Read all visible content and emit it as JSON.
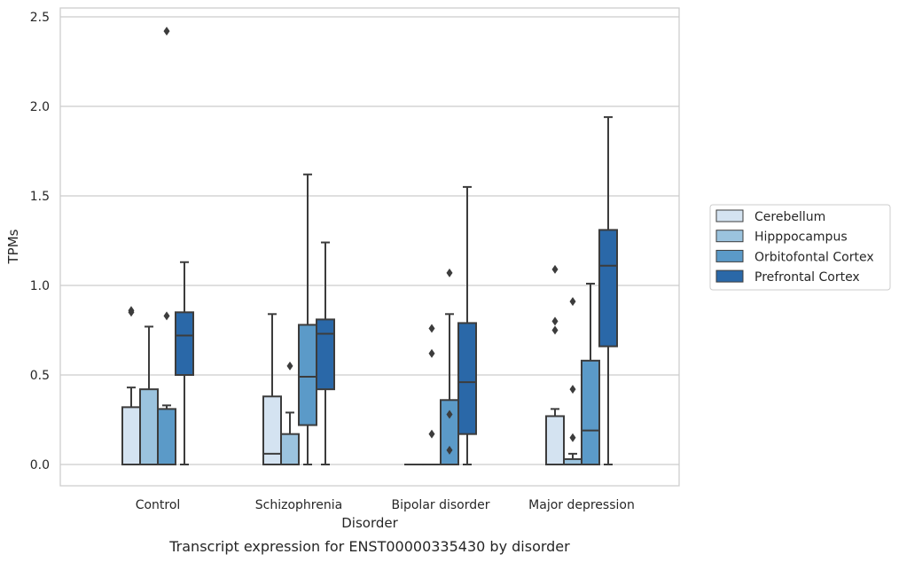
{
  "chart_data": {
    "type": "box",
    "title": "",
    "caption": "Transcript expression for ENST00000335430 by disorder",
    "xlabel": "Disorder",
    "ylabel": "TPMs",
    "ylim": [
      -0.12,
      2.55
    ],
    "yticks": [
      "0.0",
      "0.5",
      "1.0",
      "1.5",
      "2.0",
      "2.5"
    ],
    "ytick_values": [
      0,
      0.5,
      1.0,
      1.5,
      2.0,
      2.5
    ],
    "grid": "horizontal",
    "legend_position": "right",
    "categories": [
      "Control",
      "Schizophrenia",
      "Bipolar disorder",
      "Major depression"
    ],
    "series": [
      {
        "name": "Cerebellum",
        "color": "#d4e3f1",
        "boxes": [
          {
            "whislo": 0.0,
            "q1": 0.0,
            "med": 0.0,
            "q3": 0.32,
            "whishi": 0.43,
            "fliers": [
              0.85,
              0.86
            ]
          },
          {
            "whislo": 0.0,
            "q1": 0.0,
            "med": 0.06,
            "q3": 0.38,
            "whishi": 0.84,
            "fliers": []
          },
          {
            "whislo": 0.0,
            "q1": 0.0,
            "med": 0.0,
            "q3": 0.0,
            "whishi": 0.0,
            "fliers": []
          },
          {
            "whislo": 0.0,
            "q1": 0.0,
            "med": 0.0,
            "q3": 0.27,
            "whishi": 0.31,
            "fliers": [
              0.75,
              0.8,
              1.09
            ]
          }
        ]
      },
      {
        "name": "Hipppocampus",
        "color": "#9bc3de",
        "boxes": [
          {
            "whislo": 0.0,
            "q1": 0.0,
            "med": 0.0,
            "q3": 0.42,
            "whishi": 0.77,
            "fliers": []
          },
          {
            "whislo": 0.0,
            "q1": 0.0,
            "med": 0.0,
            "q3": 0.17,
            "whishi": 0.29,
            "fliers": [
              0.55
            ]
          },
          {
            "whislo": 0.0,
            "q1": 0.0,
            "med": 0.0,
            "q3": 0.0,
            "whishi": 0.0,
            "fliers": [
              0.17,
              0.62,
              0.76
            ]
          },
          {
            "whislo": 0.0,
            "q1": 0.0,
            "med": 0.0,
            "q3": 0.03,
            "whishi": 0.06,
            "fliers": [
              0.15,
              0.42,
              0.91
            ]
          }
        ]
      },
      {
        "name": "Orbitofontal Cortex",
        "color": "#5b9ac8",
        "boxes": [
          {
            "whislo": 0.0,
            "q1": 0.0,
            "med": 0.0,
            "q3": 0.31,
            "whishi": 0.33,
            "fliers": [
              0.83,
              2.42
            ]
          },
          {
            "whislo": 0.0,
            "q1": 0.22,
            "med": 0.49,
            "q3": 0.78,
            "whishi": 1.62,
            "fliers": []
          },
          {
            "whislo": 0.0,
            "q1": 0.0,
            "med": 0.0,
            "q3": 0.36,
            "whishi": 0.84,
            "fliers": [
              0.08,
              0.28,
              1.07
            ]
          },
          {
            "whislo": 0.0,
            "q1": 0.0,
            "med": 0.19,
            "q3": 0.58,
            "whishi": 1.01,
            "fliers": []
          }
        ]
      },
      {
        "name": "Prefrontal Cortex",
        "color": "#2a68a8",
        "boxes": [
          {
            "whislo": 0.0,
            "q1": 0.5,
            "med": 0.72,
            "q3": 0.85,
            "whishi": 1.13,
            "fliers": []
          },
          {
            "whislo": 0.0,
            "q1": 0.42,
            "med": 0.73,
            "q3": 0.81,
            "whishi": 1.24,
            "fliers": []
          },
          {
            "whislo": 0.0,
            "q1": 0.17,
            "med": 0.46,
            "q3": 0.79,
            "whishi": 1.55,
            "fliers": []
          },
          {
            "whislo": 0.0,
            "q1": 0.66,
            "med": 1.11,
            "q3": 1.31,
            "whishi": 1.94,
            "fliers": []
          }
        ]
      }
    ]
  }
}
